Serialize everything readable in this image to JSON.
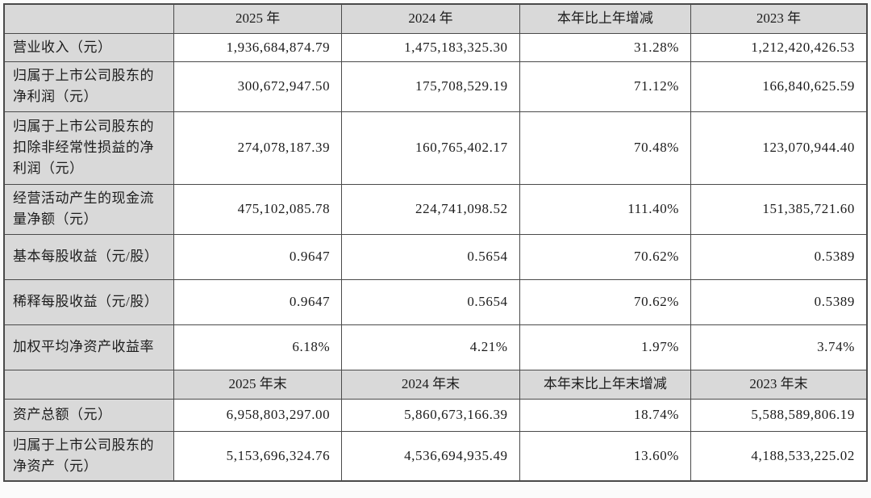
{
  "colors": {
    "header_bg": "#d9d9d9",
    "border": "#4a4a4a",
    "text": "#1c1c1c",
    "cell_bg": "#ffffff"
  },
  "table": {
    "description": "财务主要指标摘要表",
    "sections": [
      {
        "header": [
          "",
          "2025 年",
          "2024 年",
          "本年比上年增减",
          "2023 年"
        ],
        "rows": [
          {
            "label": "营业收入（元）",
            "values": [
              "1,936,684,874.79",
              "1,475,183,325.30",
              "31.28%",
              "1,212,420,426.53"
            ]
          },
          {
            "label": "归属于上市公司股东的净利润（元）",
            "values": [
              "300,672,947.50",
              "175,708,529.19",
              "71.12%",
              "166,840,625.59"
            ]
          },
          {
            "label": "归属于上市公司股东的扣除非经常性损益的净利润（元）",
            "values": [
              "274,078,187.39",
              "160,765,402.17",
              "70.48%",
              "123,070,944.40"
            ]
          },
          {
            "label": "经营活动产生的现金流量净额（元）",
            "values": [
              "475,102,085.78",
              "224,741,098.52",
              "111.40%",
              "151,385,721.60"
            ]
          },
          {
            "label": "基本每股收益（元/股）",
            "values": [
              "0.9647",
              "0.5654",
              "70.62%",
              "0.5389"
            ]
          },
          {
            "label": "稀释每股收益（元/股）",
            "values": [
              "0.9647",
              "0.5654",
              "70.62%",
              "0.5389"
            ]
          },
          {
            "label": "加权平均净资产收益率",
            "values": [
              "6.18%",
              "4.21%",
              "1.97%",
              "3.74%"
            ]
          }
        ]
      },
      {
        "header": [
          "",
          "2025 年末",
          "2024 年末",
          "本年末比上年末增减",
          "2023 年末"
        ],
        "rows": [
          {
            "label": "资产总额（元）",
            "values": [
              "6,958,803,297.00",
              "5,860,673,166.39",
              "18.74%",
              "5,588,589,806.19"
            ]
          },
          {
            "label": "归属于上市公司股东的净资产（元）",
            "values": [
              "5,153,696,324.76",
              "4,536,694,935.49",
              "13.60%",
              "4,188,533,225.02"
            ]
          }
        ]
      }
    ]
  }
}
